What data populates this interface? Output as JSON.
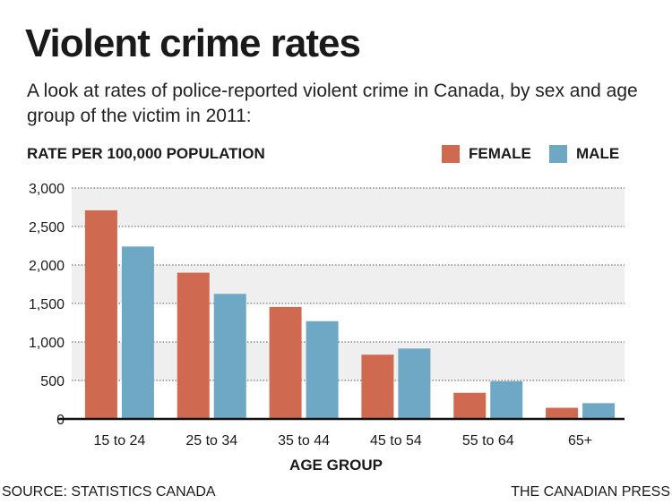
{
  "chart_data": {
    "type": "bar",
    "title": "Violent crime rates",
    "subtitle": "A look at rates of police-reported violent crime in Canada, by sex and age group of the victim in 2011:",
    "ylabel": "RATE PER 100,000 POPULATION",
    "xlabel": "AGE GROUP",
    "categories": [
      "15 to 24",
      "25 to 34",
      "35 to 44",
      "45 to 54",
      "55 to 64",
      "65+"
    ],
    "series": [
      {
        "name": "FEMALE",
        "color": "#cf6a50",
        "values": [
          2710,
          1900,
          1455,
          835,
          340,
          145
        ]
      },
      {
        "name": "MALE",
        "color": "#6fa8c4",
        "values": [
          2240,
          1625,
          1270,
          915,
          490,
          205
        ]
      }
    ],
    "ylim": [
      0,
      3000
    ],
    "yticks": [
      "0",
      "500",
      "1,000",
      "1,500",
      "2,000",
      "2,500",
      "3,000"
    ],
    "grid": true,
    "legend": "top-right",
    "source": "SOURCE: STATISTICS CANADA",
    "credit": "THE CANADIAN PRESS"
  }
}
